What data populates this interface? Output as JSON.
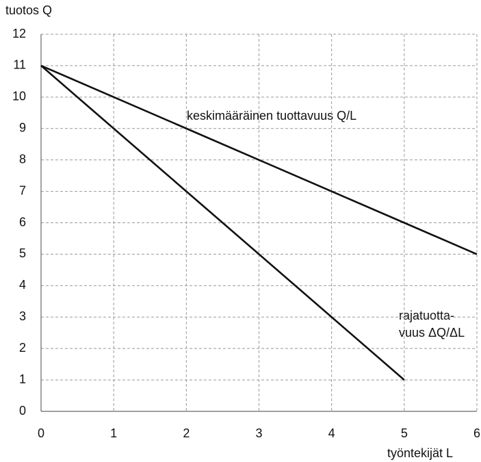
{
  "chart_data": {
    "type": "line",
    "y_label": "tuotos Q",
    "x_label": "työntekijät L",
    "x": [
      0,
      1,
      2,
      3,
      4,
      5,
      6
    ],
    "series": [
      {
        "color": "#111111",
        "values": [
          11,
          10,
          9,
          8,
          7,
          6,
          5
        ]
      },
      {
        "color": "#111111",
        "values": [
          11,
          9,
          7,
          5,
          3,
          1,
          null
        ]
      }
    ],
    "annotations": [
      {
        "lines": [
          "keskimääräinen tuottavuus Q/L"
        ]
      },
      {
        "lines": [
          "rajatuotta-",
          "vuus ΔQ/ΔL"
        ]
      }
    ],
    "xlim": [
      0,
      6
    ],
    "ylim": [
      0,
      12
    ],
    "xticks": [
      0,
      1,
      2,
      3,
      4,
      5,
      6
    ],
    "yticks": [
      0,
      1,
      2,
      3,
      4,
      5,
      6,
      7,
      8,
      9,
      10,
      11,
      12
    ],
    "grid": true
  }
}
